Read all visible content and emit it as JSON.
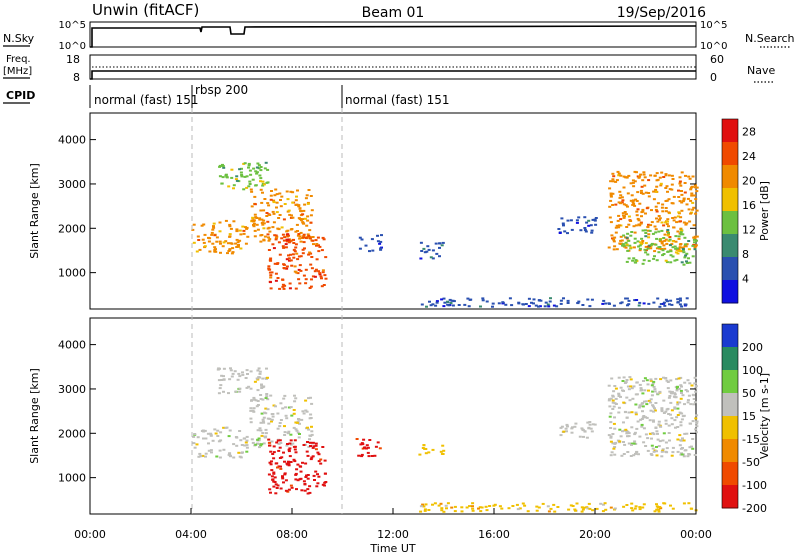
{
  "header": {
    "title_left": "Unwin (fitACF)",
    "title_center": "Beam 01",
    "title_right": "19/Sep/2016"
  },
  "nsky_panel": {
    "label": "N.Sky",
    "right_label": "N.Search",
    "left_ticks": [
      "10^5",
      "10^0"
    ],
    "right_ticks": [
      "10^5",
      "10^0"
    ]
  },
  "freq_panel": {
    "label_line1": "Freq.",
    "label_line2": "[MHz]",
    "right_label": "Nave",
    "left_ticks": [
      "18",
      "8"
    ],
    "right_ticks": [
      "60",
      "0"
    ]
  },
  "cpid_panel": {
    "label": "CPID",
    "segments": [
      {
        "start": 0,
        "end": 4,
        "label": "normal (fast) 151"
      },
      {
        "start": 4,
        "end": 10,
        "label": "rbsp 200"
      },
      {
        "start": 10,
        "end": 24,
        "label": "normal (fast) 151"
      }
    ]
  },
  "colors": {
    "scale": [
      "#1010e0",
      "#2a50b0",
      "#3a8a70",
      "#6cc040",
      "#f0c000",
      "#f08a00",
      "#f04a00",
      "#e01010"
    ],
    "ground_gray": "#c0c0bc"
  },
  "chart_data": [
    {
      "type": "heatmap",
      "quantity": "Power",
      "ylabel": "Slant Range [km]",
      "xlabel": "",
      "xlim": [
        0,
        24
      ],
      "ylim": [
        180,
        4600
      ],
      "yticks": [
        1000,
        2000,
        3000,
        4000
      ],
      "colorbar": {
        "label": "Power [dB]",
        "ticks": [
          "4",
          "8",
          "12",
          "16",
          "20",
          "24",
          "28"
        ],
        "range": [
          0,
          30
        ],
        "colors": [
          "#1010e0",
          "#2a50b0",
          "#3a8a70",
          "#6cc040",
          "#f0c000",
          "#f08a00",
          "#f04a00",
          "#e01010"
        ]
      },
      "echo_regions": [
        {
          "t0": 4.0,
          "t1": 6.2,
          "r0": 1450,
          "r1": 2200,
          "value": 22
        },
        {
          "t0": 6.3,
          "t1": 8.8,
          "r0": 1700,
          "r1": 2900,
          "value": 20
        },
        {
          "t0": 7.0,
          "t1": 9.3,
          "r0": 650,
          "r1": 1900,
          "value": 26
        },
        {
          "t0": 5.0,
          "t1": 7.0,
          "r0": 2900,
          "r1": 3500,
          "value": 12
        },
        {
          "t0": 10.5,
          "t1": 11.5,
          "r0": 1500,
          "r1": 1900,
          "value": 6
        },
        {
          "t0": 13.0,
          "t1": 14.0,
          "r0": 1300,
          "r1": 1700,
          "value": 5
        },
        {
          "t0": 18.5,
          "t1": 20.0,
          "r0": 1900,
          "r1": 2300,
          "value": 6
        },
        {
          "t0": 20.5,
          "t1": 24.0,
          "r0": 1500,
          "r1": 3300,
          "value": 20
        },
        {
          "t0": 21.0,
          "t1": 24.0,
          "r0": 1200,
          "r1": 2000,
          "value": 12
        },
        {
          "t0": 13.0,
          "t1": 24.0,
          "r0": 250,
          "r1": 450,
          "value": 5
        }
      ]
    },
    {
      "type": "heatmap",
      "quantity": "Velocity",
      "ylabel": "Slant Range [km]",
      "xlabel": "Time UT",
      "xlim": [
        0,
        24
      ],
      "ylim": [
        180,
        4600
      ],
      "yticks": [
        1000,
        2000,
        3000,
        4000
      ],
      "xticks": [
        "00:00",
        "04:00",
        "08:00",
        "12:00",
        "16:00",
        "20:00",
        "00:00"
      ],
      "colorbar": {
        "label": "Velocity [m s-1]",
        "ticks": [
          "200",
          "100",
          "50",
          "15",
          "-15",
          "-50",
          "-100",
          "-200"
        ],
        "range": [
          -250,
          250
        ],
        "colors": [
          "#1a3ad0",
          "#2a8a60",
          "#70cc40",
          "#c0c0bc",
          "#f0c000",
          "#f08a00",
          "#f04a00",
          "#e01010"
        ]
      },
      "echo_regions": [
        {
          "t0": 4.0,
          "t1": 6.2,
          "r0": 1450,
          "r1": 2200,
          "value": 0
        },
        {
          "t0": 6.3,
          "t1": 8.8,
          "r0": 1700,
          "r1": 2900,
          "value": 0
        },
        {
          "t0": 7.0,
          "t1": 9.3,
          "r0": 650,
          "r1": 1900,
          "value": -200
        },
        {
          "t0": 5.0,
          "t1": 7.0,
          "r0": 2900,
          "r1": 3500,
          "value": 0
        },
        {
          "t0": 10.5,
          "t1": 11.5,
          "r0": 1500,
          "r1": 1900,
          "value": -200
        },
        {
          "t0": 13.0,
          "t1": 14.0,
          "r0": 1500,
          "r1": 1800,
          "value": -40
        },
        {
          "t0": 18.5,
          "t1": 20.0,
          "r0": 1900,
          "r1": 2300,
          "value": 0
        },
        {
          "t0": 20.5,
          "t1": 24.0,
          "r0": 1500,
          "r1": 3300,
          "value": 0
        },
        {
          "t0": 13.0,
          "t1": 24.0,
          "r0": 250,
          "r1": 450,
          "value": -40
        }
      ]
    }
  ]
}
